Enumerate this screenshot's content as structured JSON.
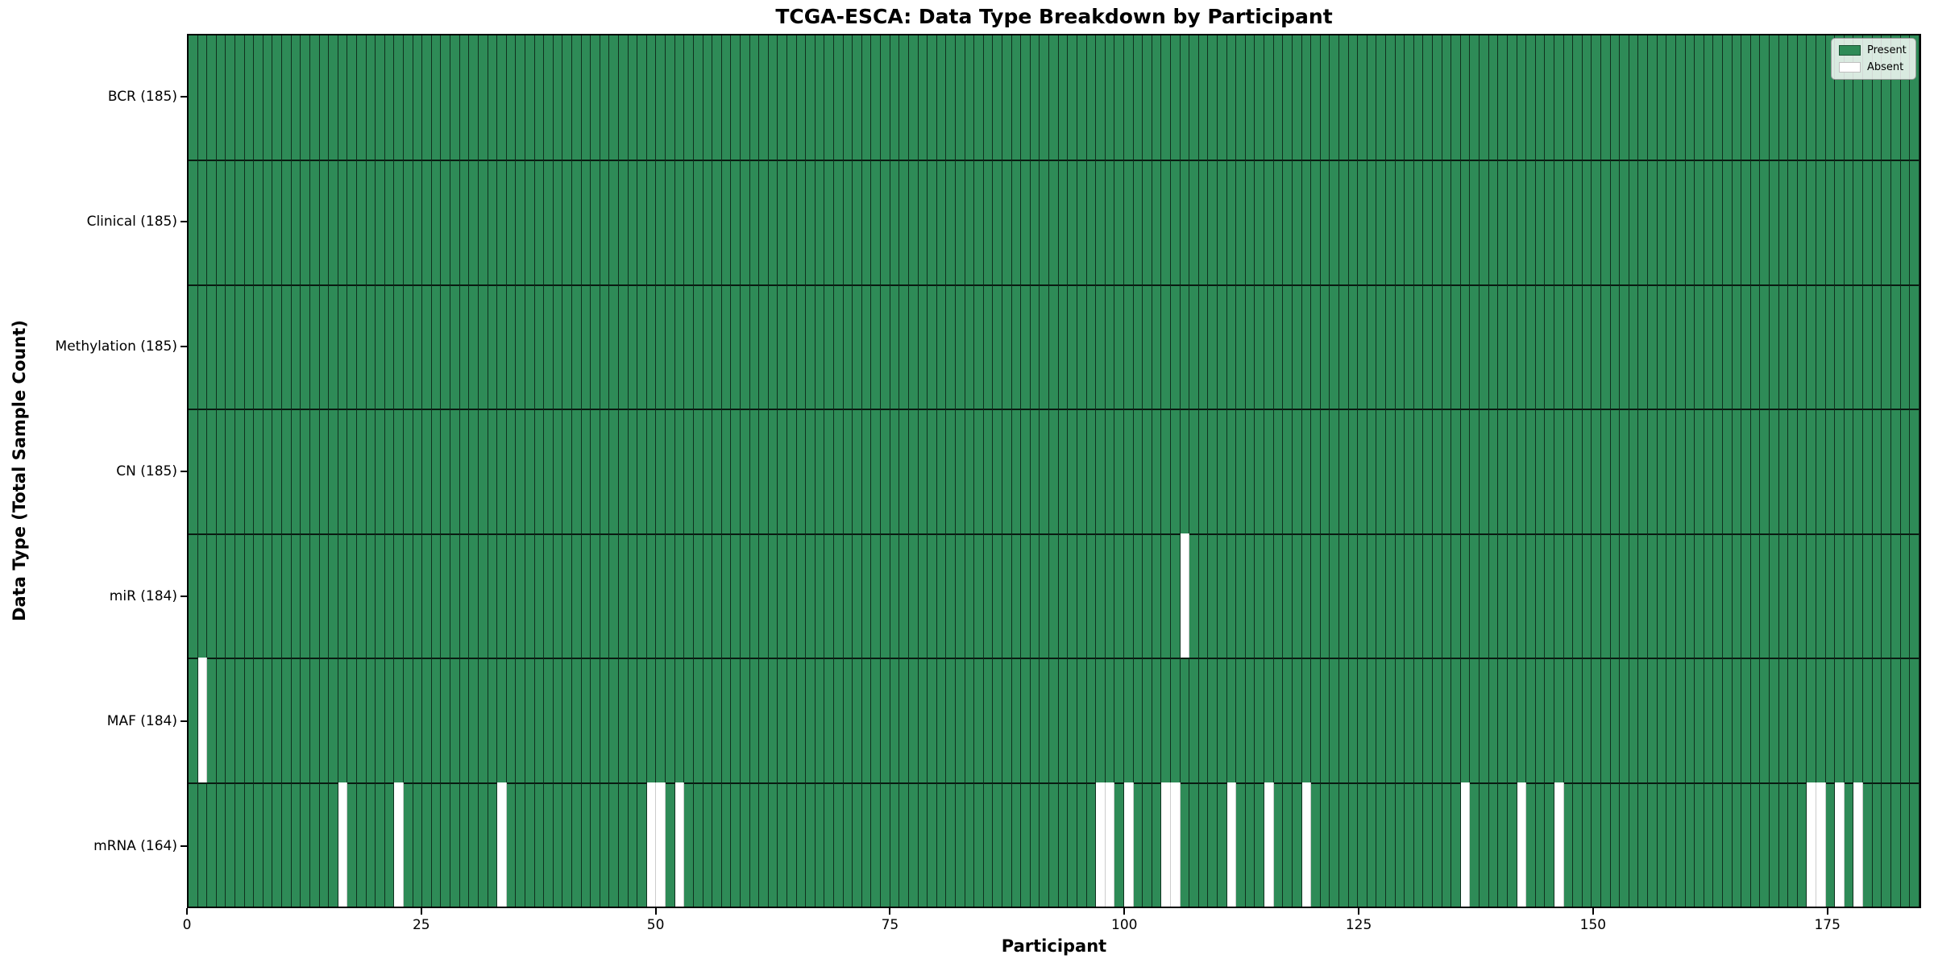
{
  "chart": {
    "title": "TCGA-ESCA: Data Type Breakdown by Participant",
    "xlabel": "Participant",
    "ylabel": "Data Type (Total Sample Count)"
  },
  "chart_data": {
    "type": "heatmap",
    "title": "TCGA-ESCA: Data Type Breakdown by Participant",
    "xlabel": "Participant",
    "ylabel": "Data Type (Total Sample Count)",
    "x_range": [
      0,
      185
    ],
    "n_participants": 185,
    "grid": "cell-borders",
    "legend_position": "upper right",
    "legend": [
      {
        "label": "Present",
        "color": "#2E8B57"
      },
      {
        "label": "Absent",
        "color": "#FFFFFF"
      }
    ],
    "colors": {
      "present": "#2E8B57",
      "absent": "#FFFFFF",
      "cell_edge": "#1a1a1a"
    },
    "x_ticks": [
      {
        "value": 0,
        "label": "0"
      },
      {
        "value": 25,
        "label": "25"
      },
      {
        "value": 50,
        "label": "50"
      },
      {
        "value": 75,
        "label": "75"
      },
      {
        "value": 100,
        "label": "100"
      },
      {
        "value": 125,
        "label": "125"
      },
      {
        "value": 150,
        "label": "150"
      },
      {
        "value": 175,
        "label": "175"
      }
    ],
    "rows": [
      {
        "key": "bcr",
        "label": "BCR (185)",
        "data_type": "BCR",
        "present_count": 185,
        "absent_participants": []
      },
      {
        "key": "clinical",
        "label": "Clinical (185)",
        "data_type": "Clinical",
        "present_count": 185,
        "absent_participants": []
      },
      {
        "key": "methylation",
        "label": "Methylation (185)",
        "data_type": "Methylation",
        "present_count": 185,
        "absent_participants": []
      },
      {
        "key": "cn",
        "label": "CN (185)",
        "data_type": "CN",
        "present_count": 185,
        "absent_participants": []
      },
      {
        "key": "mir",
        "label": "miR (184)",
        "data_type": "miR",
        "present_count": 184,
        "absent_participants": [
          106
        ]
      },
      {
        "key": "maf",
        "label": "MAF (184)",
        "data_type": "MAF",
        "present_count": 184,
        "absent_participants": [
          1
        ]
      },
      {
        "key": "mrna",
        "label": "mRNA (164)",
        "data_type": "mRNA",
        "present_count": 164,
        "absent_participants": [
          16,
          22,
          33,
          49,
          50,
          52,
          97,
          98,
          100,
          104,
          105,
          111,
          115,
          119,
          136,
          142,
          146,
          173,
          174,
          176,
          178
        ]
      }
    ]
  }
}
